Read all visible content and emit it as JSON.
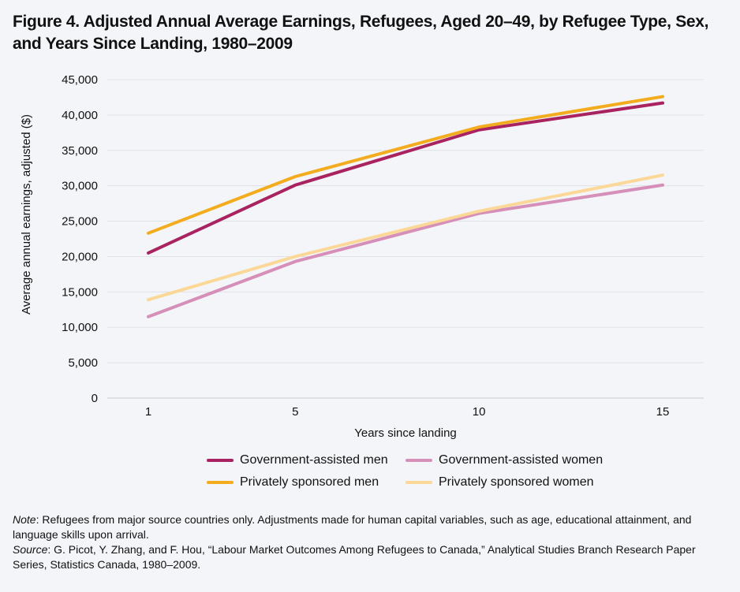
{
  "chart_data": {
    "type": "line",
    "title": "Figure 4. Adjusted Annual Average Earnings, Refugees, Aged 20–49, by Refugee Type, Sex, and Years Since Landing, 1980–2009",
    "xlabel": "Years since landing",
    "ylabel": "Average annual earnings, adjusted ($)",
    "x": [
      1,
      5,
      10,
      15
    ],
    "x_tick_labels": [
      "1",
      "5",
      "10",
      "15"
    ],
    "ylim": [
      0,
      45000
    ],
    "y_ticks": [
      0,
      5000,
      10000,
      15000,
      20000,
      25000,
      30000,
      35000,
      40000,
      45000
    ],
    "y_tick_labels": [
      "0",
      "5,000",
      "10,000",
      "15,000",
      "20,000",
      "25,000",
      "30,000",
      "35,000",
      "40,000",
      "45,000"
    ],
    "grid": "horizontal",
    "legend_position": "bottom",
    "series": [
      {
        "name": "Government-assisted men",
        "color": "#a8235f",
        "values": [
          20500,
          30100,
          37900,
          41700
        ]
      },
      {
        "name": "Government-assisted women",
        "color": "#d68fb8",
        "values": [
          11500,
          19300,
          26100,
          30100
        ]
      },
      {
        "name": "Privately sponsored men",
        "color": "#f2ac1e",
        "values": [
          23300,
          31300,
          38300,
          42600
        ]
      },
      {
        "name": "Privately sponsored women",
        "color": "#fbd898",
        "values": [
          13900,
          20000,
          26400,
          31500
        ]
      }
    ]
  },
  "notes": {
    "note_label": "Note",
    "note_text": ": Refugees from major source countries only. Adjustments made for human capital variables, such as age, educational attainment, and language skills upon arrival.",
    "source_label": "Source",
    "source_text": ": G. Picot, Y. Zhang, and F. Hou, “Labour Market Outcomes Among Refugees to Canada,” Analytical Studies Branch Research Paper Series, Statistics Canada, 1980–2009."
  }
}
